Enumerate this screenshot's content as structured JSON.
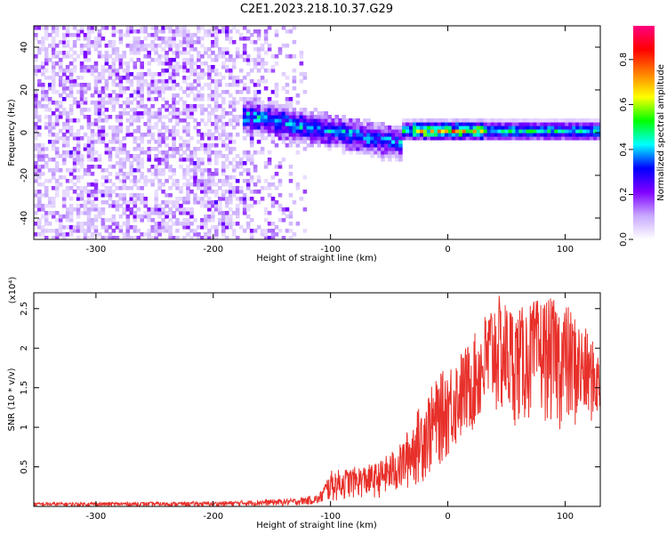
{
  "figure": {
    "title": "C2E1.2023.218.10.37.G29"
  },
  "chart_data": [
    {
      "type": "heatmap",
      "title": "C2E1.2023.218.10.37.G29",
      "xlabel": "Height of straight line (km)",
      "ylabel": "Frequency (Hz)",
      "xlim": [
        -353,
        130
      ],
      "ylim": [
        -50,
        50
      ],
      "x_ticks": [
        -300,
        -200,
        -100,
        0,
        100
      ],
      "y_ticks": [
        -40,
        -20,
        0,
        20,
        40
      ],
      "colorbar": {
        "label": "Normalized spectral amplitude",
        "range": [
          0.0,
          0.95
        ],
        "ticks": [
          0.0,
          0.2,
          0.4,
          0.6,
          0.8
        ],
        "colors": [
          "#ffffff",
          "#c8a8ff",
          "#7f00ff",
          "#0000ff",
          "#00ffff",
          "#00ff00",
          "#ffff00",
          "#ff8000",
          "#ff0000",
          "#ff0080"
        ]
      },
      "features": [
        {
          "x_range": [
            -353,
            -120
          ],
          "y_range": [
            -50,
            50
          ],
          "description": "scattered noise, amplitude 0.05-0.2"
        },
        {
          "x_range": [
            -170,
            -40
          ],
          "y_center_start": 8,
          "y_center_end": -5,
          "description": "descending signal band, amplitude 0.2-0.5"
        },
        {
          "x_range": [
            -40,
            130
          ],
          "y_center": 1,
          "description": "steady tone near 0 Hz, amplitude 0.3-0.95"
        }
      ]
    },
    {
      "type": "line",
      "xlabel": "Height of straight line (km)",
      "ylabel": "SNR (10 * v/v)",
      "y_multiplier": "(x10⁴)",
      "xlim": [
        -353,
        130
      ],
      "ylim": [
        0,
        2.7
      ],
      "x_ticks": [
        -300,
        -200,
        -100,
        0,
        100
      ],
      "y_ticks": [
        0.5,
        1.0,
        1.5,
        2.0,
        2.5
      ],
      "line_color": "#e8302a",
      "envelope": {
        "x": [
          -353,
          -200,
          -130,
          -110,
          -100,
          -80,
          -60,
          -40,
          -20,
          0,
          20,
          40,
          60,
          80,
          100,
          120,
          130
        ],
        "y_low": [
          0.0,
          0.0,
          0.01,
          0.02,
          0.05,
          0.1,
          0.1,
          0.15,
          0.3,
          0.6,
          0.9,
          1.1,
          1.0,
          1.1,
          0.9,
          1.0,
          1.1
        ],
        "y_high": [
          0.05,
          0.06,
          0.1,
          0.15,
          0.45,
          0.5,
          0.55,
          0.8,
          1.4,
          1.8,
          2.1,
          2.7,
          2.5,
          2.65,
          2.6,
          2.2,
          1.9
        ]
      }
    }
  ]
}
